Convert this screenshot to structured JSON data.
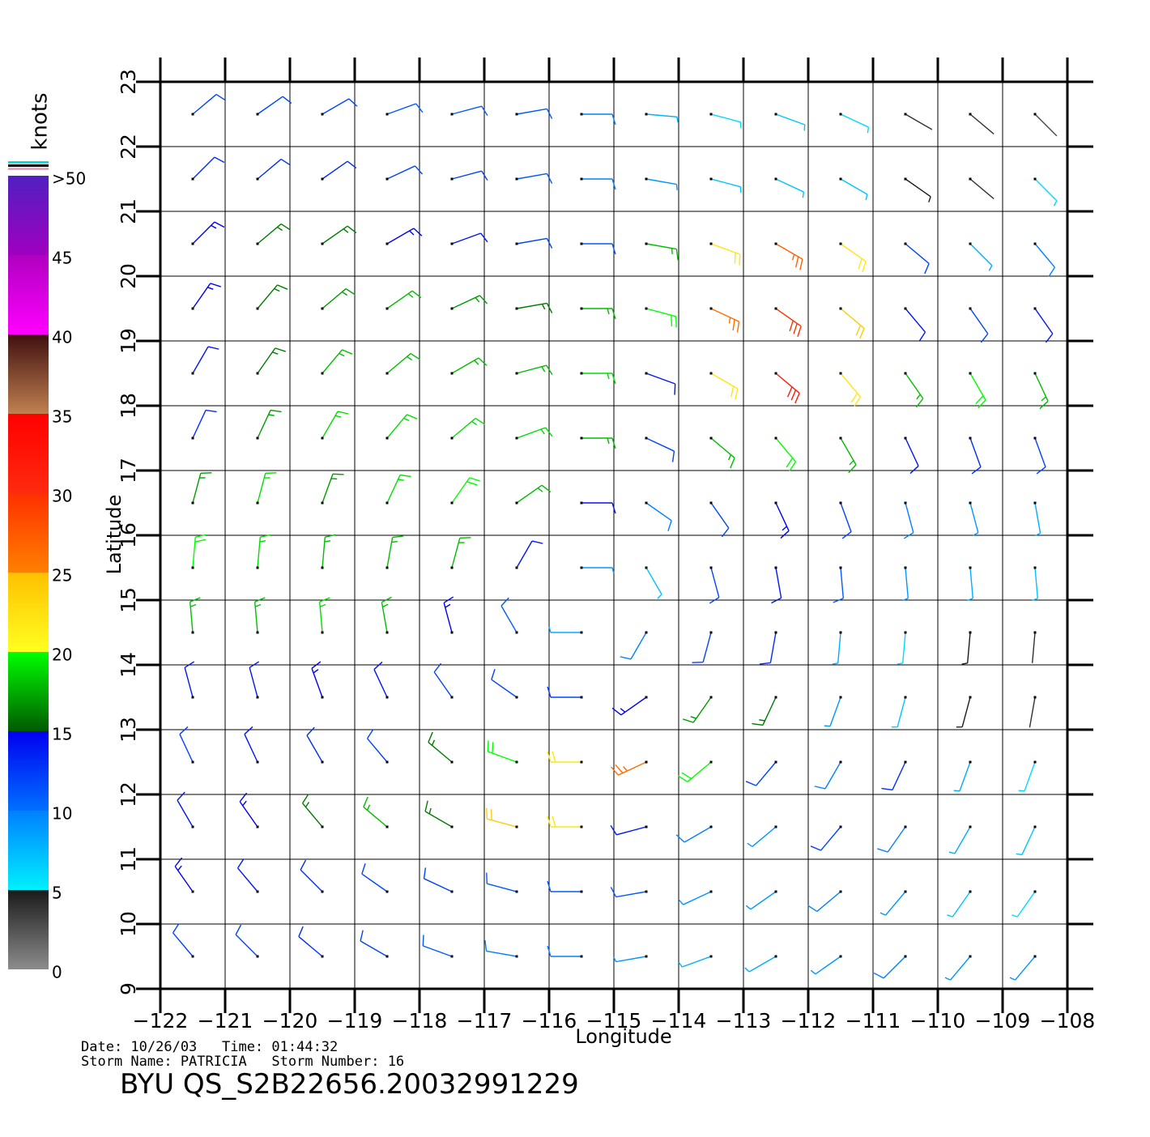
{
  "chart_data": {
    "type": "wind-barb",
    "x_label": "Longitude",
    "y_label": "Latitude",
    "xlim": [
      -122,
      -108
    ],
    "ylim": [
      9,
      23
    ],
    "xticks": [
      {
        "value": -122,
        "label": "−122"
      },
      {
        "value": -121,
        "label": "−121"
      },
      {
        "value": -120,
        "label": "−120"
      },
      {
        "value": -119,
        "label": "−119"
      },
      {
        "value": -118,
        "label": "−118"
      },
      {
        "value": -117,
        "label": "−117"
      },
      {
        "value": -116,
        "label": "−116"
      },
      {
        "value": -115,
        "label": "−115"
      },
      {
        "value": -114,
        "label": "−114"
      },
      {
        "value": -113,
        "label": "−113"
      },
      {
        "value": -112,
        "label": "−112"
      },
      {
        "value": -111,
        "label": "−111"
      },
      {
        "value": -110,
        "label": "−110"
      },
      {
        "value": -109,
        "label": "−109"
      },
      {
        "value": -108,
        "label": "−108"
      }
    ],
    "yticks": [
      9,
      10,
      11,
      12,
      13,
      14,
      15,
      16,
      17,
      18,
      19,
      20,
      21,
      22,
      23
    ],
    "grid": true,
    "colorbar": {
      "label": "knots",
      "lim": [
        0,
        50
      ],
      "ticks": [
        0,
        5,
        10,
        15,
        20,
        25,
        30,
        35,
        40,
        45,
        {
          "value": 50,
          "label": ">50"
        }
      ],
      "stops": [
        {
          "value": 0,
          "color": "#8c8c8c"
        },
        {
          "value": 5,
          "color": "#1a1a1a"
        },
        {
          "value": 5,
          "color": "#00f0ff"
        },
        {
          "value": 10,
          "color": "#0080ff"
        },
        {
          "value": 10,
          "color": "#0070ff"
        },
        {
          "value": 15,
          "color": "#0000f0"
        },
        {
          "value": 15,
          "color": "#005a00"
        },
        {
          "value": 20,
          "color": "#00ff00"
        },
        {
          "value": 20,
          "color": "#ffff20"
        },
        {
          "value": 25,
          "color": "#ffc000"
        },
        {
          "value": 25,
          "color": "#ff8000"
        },
        {
          "value": 30,
          "color": "#ff3000"
        },
        {
          "value": 30,
          "color": "#ff2a10"
        },
        {
          "value": 35,
          "color": "#ff0000"
        },
        {
          "value": 35,
          "color": "#c08050"
        },
        {
          "value": 40,
          "color": "#401010"
        },
        {
          "value": 40,
          "color": "#ff00ff"
        },
        {
          "value": 45,
          "color": "#b000c0"
        },
        {
          "value": 45,
          "color": "#a000c0"
        },
        {
          "value": 50,
          "color": "#5020c0"
        }
      ]
    },
    "wind": {
      "lon": [
        -121.5,
        -120.5,
        -119.5,
        -118.5,
        -117.5,
        -116.5,
        -115.5,
        -114.5,
        -113.5,
        -112.5,
        -111.5,
        -110.5,
        -109.5,
        -108.5
      ],
      "lat": [
        22.5,
        21.5,
        20.5,
        19.5,
        18.5,
        17.5,
        16.5,
        15.5,
        14.5,
        13.5,
        12.5,
        11.5,
        10.5,
        9.5
      ],
      "speed": [
        [
          12,
          12,
          12,
          11,
          11,
          11,
          10,
          8,
          6,
          7,
          6,
          4,
          4,
          3
        ],
        [
          13,
          13,
          13,
          12,
          12,
          11,
          10,
          9,
          7,
          7,
          7,
          5,
          4,
          6
        ],
        [
          15,
          16,
          16,
          15,
          14,
          12,
          11,
          18,
          22,
          27,
          22,
          12,
          8,
          10
        ],
        [
          15,
          16,
          17,
          18,
          17,
          16,
          18,
          20,
          26,
          30,
          24,
          14,
          12,
          14
        ],
        [
          14,
          16,
          18,
          18,
          18,
          18,
          19,
          14,
          22,
          32,
          22,
          18,
          20,
          18
        ],
        [
          13,
          17,
          19,
          19,
          19,
          19,
          18,
          12,
          18,
          20,
          18,
          14,
          13,
          12
        ],
        [
          17,
          19,
          17,
          19,
          20,
          18,
          14,
          10,
          12,
          15,
          12,
          10,
          9,
          8
        ],
        [
          20,
          19,
          18,
          18,
          18,
          14,
          9,
          7,
          12,
          14,
          11,
          9,
          8,
          7
        ],
        [
          18,
          18,
          19,
          18,
          15,
          11,
          8,
          10,
          12,
          13,
          8,
          6,
          5,
          4
        ],
        [
          14,
          14,
          15,
          14,
          12,
          12,
          12,
          15,
          17,
          16,
          9,
          7,
          5,
          4
        ],
        [
          12,
          14,
          13,
          12,
          16,
          20,
          22,
          26,
          20,
          12,
          10,
          13,
          8,
          6
        ],
        [
          14,
          15,
          16,
          18,
          16,
          24,
          22,
          14,
          10,
          9,
          12,
          10,
          8,
          7
        ],
        [
          15,
          14,
          13,
          12,
          12,
          11,
          11,
          11,
          9,
          9,
          10,
          9,
          7,
          6
        ],
        [
          12,
          12,
          13,
          12,
          11,
          10,
          10,
          9,
          8,
          8,
          9,
          10,
          9,
          9
        ]
      ],
      "direction": [
        [
          50,
          55,
          60,
          70,
          75,
          80,
          90,
          95,
          105,
          110,
          115,
          120,
          130,
          135
        ],
        [
          45,
          50,
          55,
          65,
          75,
          80,
          90,
          100,
          105,
          115,
          120,
          125,
          130,
          135
        ],
        [
          45,
          50,
          55,
          60,
          70,
          80,
          90,
          100,
          110,
          120,
          125,
          130,
          135,
          140
        ],
        [
          35,
          40,
          50,
          55,
          65,
          80,
          90,
          105,
          115,
          125,
          130,
          140,
          145,
          145
        ],
        [
          30,
          35,
          40,
          50,
          60,
          75,
          90,
          110,
          120,
          130,
          140,
          145,
          150,
          155
        ],
        [
          25,
          25,
          30,
          40,
          50,
          70,
          90,
          115,
          130,
          140,
          150,
          155,
          160,
          160
        ],
        [
          15,
          15,
          20,
          25,
          35,
          55,
          90,
          125,
          145,
          155,
          160,
          165,
          165,
          170
        ],
        [
          5,
          5,
          5,
          10,
          15,
          30,
          90,
          150,
          165,
          170,
          175,
          175,
          175,
          175
        ],
        [
          355,
          355,
          355,
          350,
          345,
          330,
          270,
          210,
          195,
          190,
          185,
          185,
          185,
          185
        ],
        [
          345,
          345,
          340,
          335,
          325,
          305,
          270,
          235,
          215,
          205,
          200,
          195,
          195,
          190
        ],
        [
          335,
          335,
          330,
          320,
          310,
          290,
          270,
          245,
          230,
          220,
          210,
          205,
          200,
          200
        ],
        [
          330,
          325,
          320,
          310,
          300,
          285,
          270,
          255,
          240,
          230,
          220,
          215,
          210,
          205
        ],
        [
          325,
          320,
          315,
          305,
          295,
          285,
          270,
          260,
          245,
          235,
          230,
          220,
          215,
          215
        ],
        [
          320,
          315,
          310,
          300,
          290,
          280,
          270,
          260,
          250,
          240,
          235,
          225,
          220,
          220
        ]
      ]
    },
    "footer": {
      "line1": "Date: 10/26/03   Time: 01:44:32",
      "line2": "Storm Name: PATRICIA   Storm Number: 16",
      "product": "BYU QS_S2B22656.20032991229"
    }
  }
}
